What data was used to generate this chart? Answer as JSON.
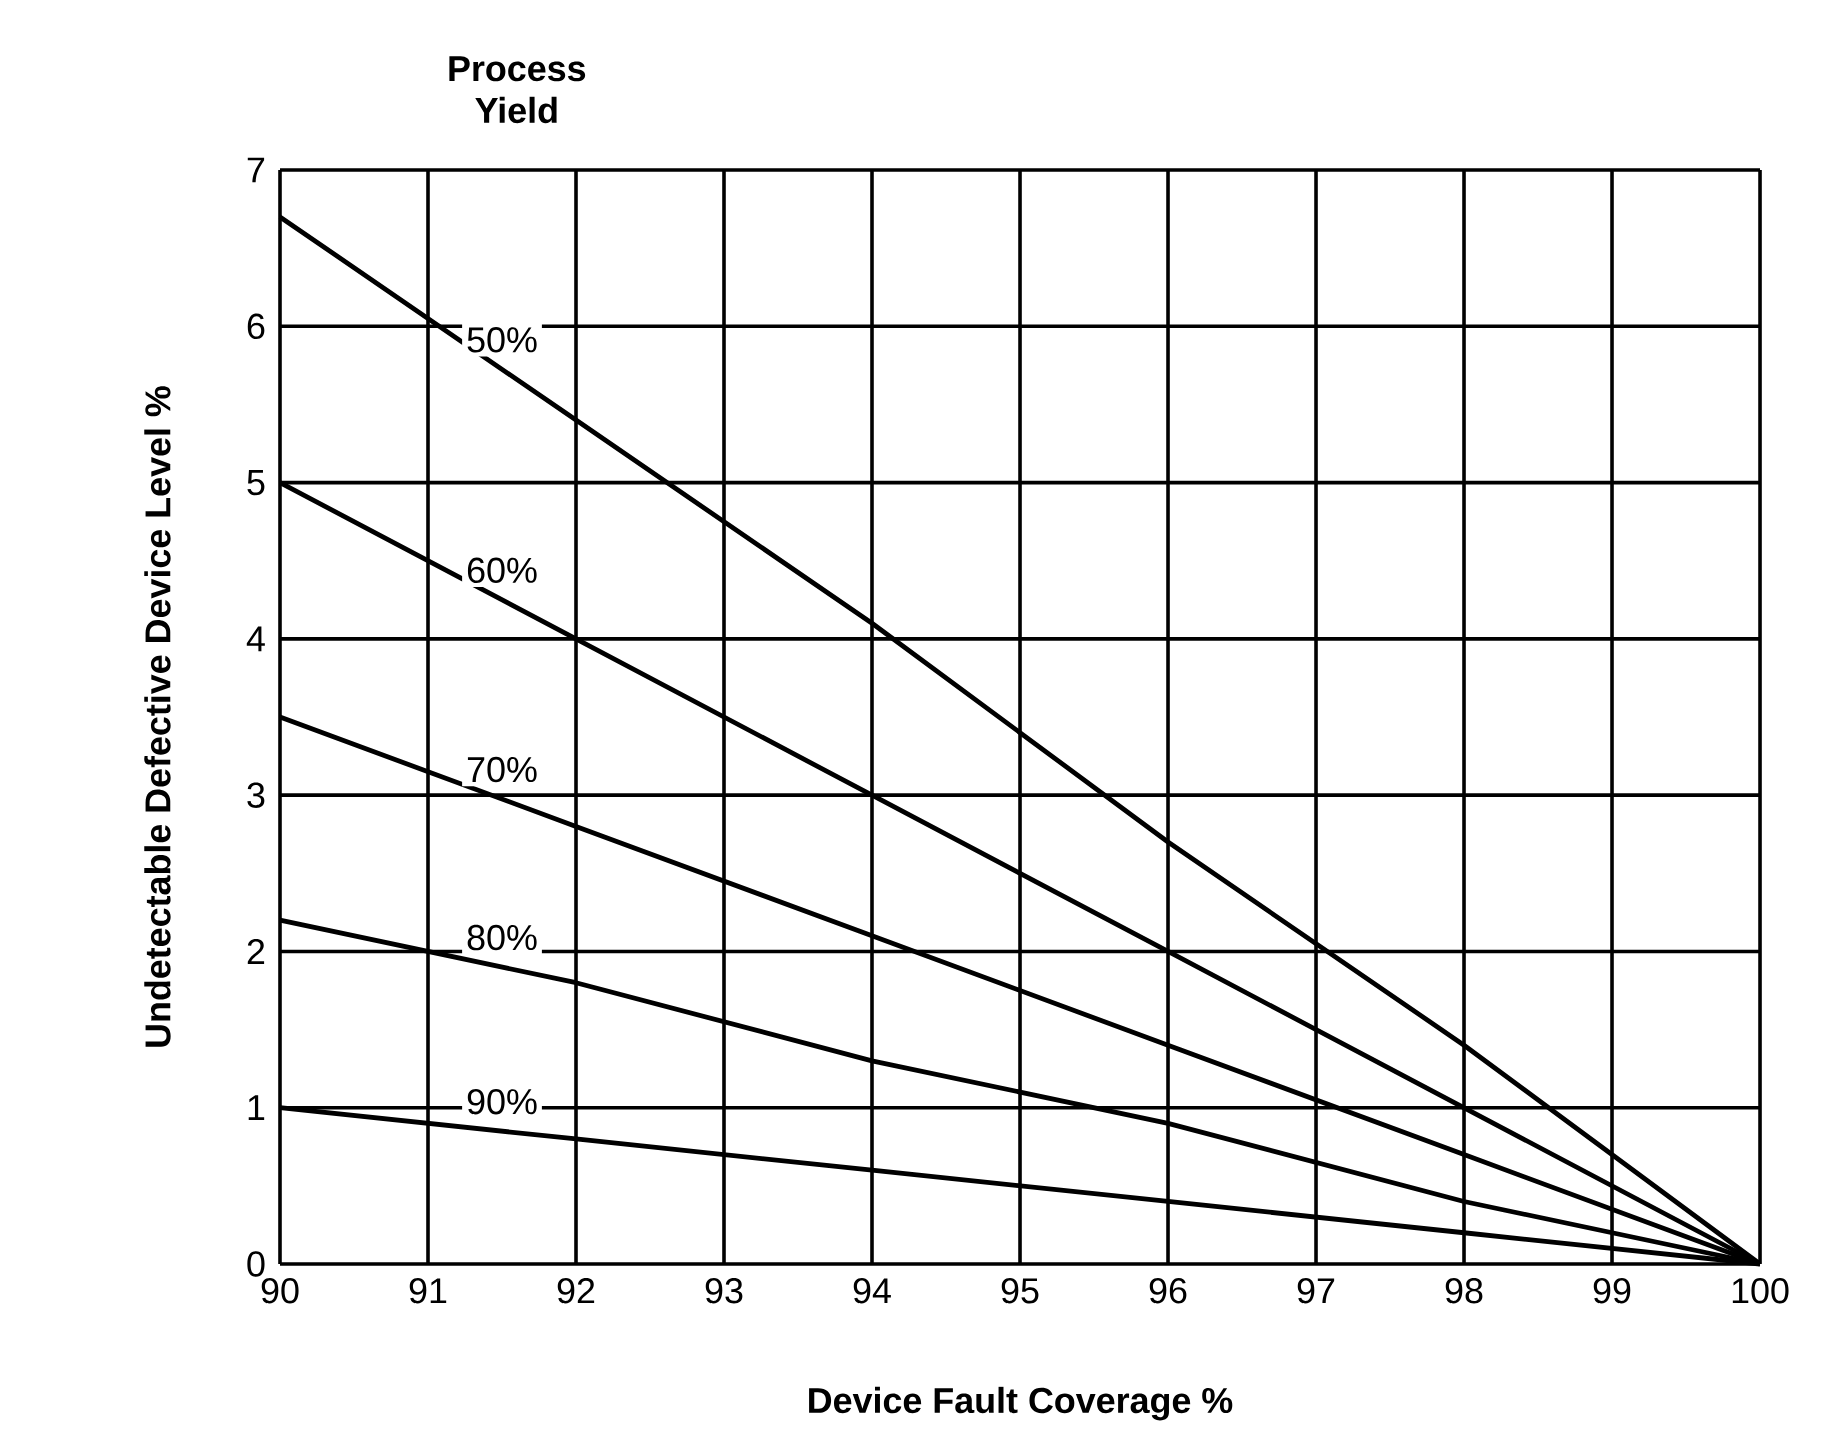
{
  "chart_data": {
    "type": "line",
    "title": "Process Yield",
    "xlabel": "Device Fault Coverage %",
    "ylabel": "Undetectable Defective Device Level %",
    "x": [
      90,
      92,
      94,
      96,
      98,
      100
    ],
    "series": [
      {
        "name": "50%",
        "color": "#000000",
        "values": [
          6.7,
          5.4,
          4.1,
          2.7,
          1.4,
          0
        ]
      },
      {
        "name": "60%",
        "color": "#000000",
        "values": [
          5.0,
          4.0,
          3.0,
          2.0,
          1.0,
          0
        ]
      },
      {
        "name": "70%",
        "color": "#000000",
        "values": [
          3.5,
          2.8,
          2.1,
          1.4,
          0.7,
          0
        ]
      },
      {
        "name": "80%",
        "color": "#000000",
        "values": [
          2.2,
          1.8,
          1.3,
          0.9,
          0.4,
          0
        ]
      },
      {
        "name": "90%",
        "color": "#000000",
        "values": [
          1.0,
          0.8,
          0.6,
          0.4,
          0.2,
          0
        ]
      }
    ],
    "xlim": [
      90,
      100
    ],
    "ylim": [
      0,
      7
    ],
    "xticks": [
      90,
      91,
      92,
      93,
      94,
      95,
      96,
      97,
      98,
      99,
      100
    ],
    "yticks": [
      0,
      1,
      2,
      3,
      4,
      5,
      6,
      7
    ],
    "grid": true,
    "marker": "none",
    "line_style": "solid"
  }
}
